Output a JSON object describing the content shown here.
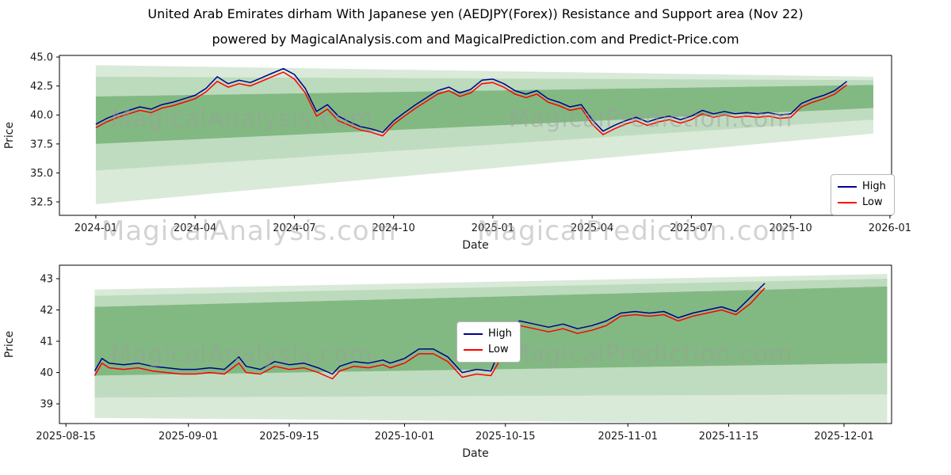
{
  "page": {
    "title": "United Arab Emirates dirham With Japanese yen (AEDJPY(Forex)) Resistance and Support area (Nov 22)",
    "subtitle": "powered by MagicalAnalysis.com and MagicalPrediction.com and Predict-Price.com"
  },
  "watermarks": {
    "top_left": "MagicalAnalysis.com",
    "top_right": "MagicalPrediction.com",
    "mid_left": "MagicalAnalysis.com",
    "mid_right": "MagicalPrediction.com",
    "bottom_left": "MagicalAnalysis.com",
    "bottom_right": "MagicalPrediction.com"
  },
  "colors": {
    "high": "#00008b",
    "low": "#ff0000",
    "band": "#2e8b2e",
    "watermark": "#9e9e9e"
  },
  "chart_data": [
    {
      "type": "line",
      "title": "United Arab Emirates dirham With Japanese yen (AEDJPY(Forex)) Resistance and Support area (Nov 22)",
      "xlabel": "Date",
      "ylabel": "Price",
      "legend_position": "right",
      "grid": false,
      "xlim": [
        -1.1,
        24.05
      ],
      "ylim": [
        31.34,
        45.14
      ],
      "xticks": [
        {
          "v": 0,
          "label": "2024-01"
        },
        {
          "v": 3,
          "label": "2024-04"
        },
        {
          "v": 6,
          "label": "2024-07"
        },
        {
          "v": 9,
          "label": "2024-10"
        },
        {
          "v": 12,
          "label": "2025-01"
        },
        {
          "v": 15,
          "label": "2025-04"
        },
        {
          "v": 18,
          "label": "2025-07"
        },
        {
          "v": 21,
          "label": "2025-10"
        },
        {
          "v": 24,
          "label": "2026-01"
        }
      ],
      "yticks": [
        {
          "v": 32.5,
          "label": "32.5"
        },
        {
          "v": 35.0,
          "label": "35.0"
        },
        {
          "v": 37.5,
          "label": "37.5"
        },
        {
          "v": 40.0,
          "label": "40.0"
        },
        {
          "v": 42.5,
          "label": "42.5"
        },
        {
          "v": 45.0,
          "label": "45.0"
        }
      ],
      "x": [
        0,
        0.33,
        0.67,
        1,
        1.33,
        1.67,
        2,
        2.33,
        2.67,
        3,
        3.33,
        3.67,
        4,
        4.33,
        4.67,
        5,
        5.33,
        5.67,
        6,
        6.33,
        6.67,
        7,
        7.33,
        7.67,
        8,
        8.33,
        8.67,
        9,
        9.33,
        9.67,
        10,
        10.33,
        10.67,
        11,
        11.33,
        11.67,
        12,
        12.33,
        12.67,
        13,
        13.33,
        13.67,
        14,
        14.33,
        14.67,
        15,
        15.33,
        15.67,
        16,
        16.33,
        16.67,
        17,
        17.33,
        17.67,
        18,
        18.33,
        18.67,
        19,
        19.33,
        19.67,
        20,
        20.33,
        20.67,
        21,
        21.33,
        21.67,
        22,
        22.33,
        22.7
      ],
      "series": [
        {
          "name": "High",
          "color": "#00008b",
          "values": [
            39.2,
            39.7,
            40.1,
            40.4,
            40.7,
            40.5,
            40.9,
            41.1,
            41.4,
            41.7,
            42.3,
            43.3,
            42.7,
            43.0,
            42.8,
            43.2,
            43.6,
            44.0,
            43.5,
            42.3,
            40.3,
            40.9,
            39.9,
            39.4,
            39.0,
            38.8,
            38.5,
            39.5,
            40.2,
            40.9,
            41.5,
            42.1,
            42.4,
            41.9,
            42.2,
            43.0,
            43.1,
            42.7,
            42.1,
            41.8,
            42.1,
            41.4,
            41.1,
            40.7,
            40.9,
            39.6,
            38.6,
            39.1,
            39.5,
            39.8,
            39.4,
            39.7,
            39.9,
            39.6,
            39.9,
            40.4,
            40.1,
            40.3,
            40.1,
            40.2,
            40.1,
            40.2,
            40.0,
            40.1,
            41.0,
            41.4,
            41.7,
            42.1,
            42.9
          ]
        },
        {
          "name": "Low",
          "color": "#ff0000",
          "values": [
            38.9,
            39.4,
            39.8,
            40.1,
            40.4,
            40.2,
            40.6,
            40.8,
            41.1,
            41.4,
            42.0,
            42.9,
            42.4,
            42.7,
            42.5,
            42.9,
            43.3,
            43.7,
            43.1,
            41.9,
            39.9,
            40.5,
            39.5,
            39.1,
            38.7,
            38.5,
            38.2,
            39.2,
            39.9,
            40.6,
            41.2,
            41.8,
            42.1,
            41.6,
            41.9,
            42.7,
            42.8,
            42.4,
            41.8,
            41.5,
            41.8,
            41.1,
            40.8,
            40.4,
            40.6,
            39.2,
            38.3,
            38.8,
            39.2,
            39.5,
            39.1,
            39.4,
            39.6,
            39.3,
            39.6,
            40.1,
            39.8,
            40.0,
            39.8,
            39.9,
            39.8,
            39.9,
            39.7,
            39.8,
            40.7,
            41.1,
            41.4,
            41.8,
            42.6
          ]
        }
      ],
      "bands": [
        {
          "points": [
            [
              0,
              32.3
            ],
            [
              0,
              35.2
            ],
            [
              23.5,
              39.6
            ],
            [
              23.5,
              38.4
            ]
          ],
          "opacity": 0.18
        },
        {
          "points": [
            [
              0,
              35.2
            ],
            [
              0,
              37.5
            ],
            [
              23.5,
              40.6
            ],
            [
              23.5,
              39.6
            ]
          ],
          "opacity": 0.3
        },
        {
          "points": [
            [
              0,
              37.5
            ],
            [
              0,
              41.6
            ],
            [
              23.5,
              42.6
            ],
            [
              23.5,
              40.6
            ]
          ],
          "opacity": 0.6
        },
        {
          "points": [
            [
              0,
              41.6
            ],
            [
              0,
              43.3
            ],
            [
              23.5,
              43.0
            ],
            [
              23.5,
              42.6
            ]
          ],
          "opacity": 0.32
        },
        {
          "points": [
            [
              0,
              43.3
            ],
            [
              0,
              44.3
            ],
            [
              23.5,
              43.3
            ],
            [
              23.5,
              43.0
            ]
          ],
          "opacity": 0.18
        }
      ]
    },
    {
      "type": "line",
      "title": "",
      "xlabel": "Date",
      "ylabel": "Price",
      "legend_position": "center",
      "grid": false,
      "xlim": [
        -0.9,
        114.6
      ],
      "ylim": [
        38.37,
        43.43
      ],
      "xticks": [
        {
          "v": 0,
          "label": "2025-08-15"
        },
        {
          "v": 17,
          "label": "2025-09-01"
        },
        {
          "v": 31,
          "label": "2025-09-15"
        },
        {
          "v": 47,
          "label": "2025-10-01"
        },
        {
          "v": 61,
          "label": "2025-10-15"
        },
        {
          "v": 78,
          "label": "2025-11-01"
        },
        {
          "v": 92,
          "label": "2025-11-15"
        },
        {
          "v": 108,
          "label": "2025-12-01"
        }
      ],
      "yticks": [
        {
          "v": 39,
          "label": "39"
        },
        {
          "v": 40,
          "label": "40"
        },
        {
          "v": 41,
          "label": "41"
        },
        {
          "v": 42,
          "label": "42"
        },
        {
          "v": 43,
          "label": "43"
        }
      ],
      "x": [
        4,
        5,
        6,
        8,
        10,
        12,
        14,
        16,
        18,
        20,
        22,
        24,
        25,
        27,
        29,
        31,
        33,
        35,
        37,
        38,
        40,
        42,
        44,
        45,
        47,
        49,
        51,
        53,
        55,
        57,
        59,
        60,
        61,
        63,
        65,
        67,
        69,
        71,
        73,
        75,
        77,
        79,
        81,
        83,
        85,
        87,
        89,
        91,
        93,
        95,
        97
      ],
      "series": [
        {
          "name": "High",
          "color": "#00008b",
          "values": [
            40.05,
            40.45,
            40.3,
            40.25,
            40.3,
            40.2,
            40.15,
            40.1,
            40.1,
            40.15,
            40.1,
            40.5,
            40.2,
            40.1,
            40.35,
            40.25,
            40.3,
            40.15,
            39.95,
            40.2,
            40.35,
            40.3,
            40.4,
            40.3,
            40.45,
            40.75,
            40.75,
            40.5,
            40.0,
            40.1,
            40.05,
            40.6,
            41.4,
            41.65,
            41.55,
            41.45,
            41.55,
            41.4,
            41.5,
            41.65,
            41.9,
            41.95,
            41.9,
            41.95,
            41.75,
            41.9,
            42.0,
            42.1,
            41.95,
            42.4,
            42.85
          ]
        },
        {
          "name": "Low",
          "color": "#ff0000",
          "values": [
            39.9,
            40.3,
            40.15,
            40.1,
            40.15,
            40.05,
            40.0,
            39.95,
            39.95,
            40.0,
            39.95,
            40.3,
            40.0,
            39.95,
            40.2,
            40.1,
            40.15,
            40.0,
            39.8,
            40.05,
            40.2,
            40.15,
            40.25,
            40.15,
            40.3,
            40.6,
            40.6,
            40.35,
            39.85,
            39.95,
            39.9,
            40.3,
            41.1,
            41.5,
            41.4,
            41.3,
            41.4,
            41.25,
            41.35,
            41.5,
            41.8,
            41.85,
            41.8,
            41.85,
            41.65,
            41.8,
            41.9,
            42.0,
            41.85,
            42.2,
            42.7
          ]
        }
      ],
      "bands": [
        {
          "points": [
            [
              4,
              38.55
            ],
            [
              4,
              39.2
            ],
            [
              114,
              39.3
            ],
            [
              114,
              38.35
            ]
          ],
          "opacity": 0.18
        },
        {
          "points": [
            [
              4,
              39.2
            ],
            [
              4,
              39.9
            ],
            [
              114,
              40.3
            ],
            [
              114,
              39.3
            ]
          ],
          "opacity": 0.3
        },
        {
          "points": [
            [
              4,
              39.9
            ],
            [
              4,
              42.1
            ],
            [
              114,
              42.75
            ],
            [
              114,
              40.3
            ]
          ],
          "opacity": 0.6
        },
        {
          "points": [
            [
              4,
              42.1
            ],
            [
              4,
              42.45
            ],
            [
              114,
              43.0
            ],
            [
              114,
              42.75
            ]
          ],
          "opacity": 0.32
        },
        {
          "points": [
            [
              4,
              42.45
            ],
            [
              4,
              42.65
            ],
            [
              114,
              43.15
            ],
            [
              114,
              43.0
            ]
          ],
          "opacity": 0.18
        }
      ]
    }
  ]
}
